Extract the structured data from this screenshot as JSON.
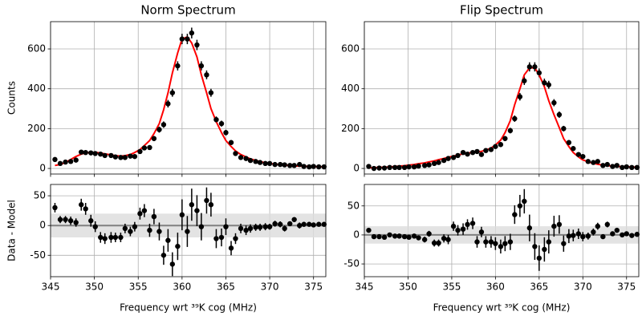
{
  "chart_data": [
    {
      "type": "scatter",
      "title": "Norm Spectrum",
      "ylabel": "Counts",
      "residual_ylabel": "Data - Model",
      "xlabel": "Frequency wrt ³⁹K cog (MHz)",
      "grid": true,
      "point_color": "#000000",
      "model_color": "#ff0000",
      "zero_line_color": "#808080",
      "band_color": "#dcdcdc",
      "xlim": [
        345,
        376.4
      ],
      "xticks": [
        345,
        350,
        355,
        360,
        365,
        370,
        375
      ],
      "ylim": [
        -28,
        737
      ],
      "yticks": [
        0,
        200,
        400,
        600
      ],
      "residual_ylim": [
        -86,
        69
      ],
      "residual_yticks": [
        -50,
        0,
        50
      ],
      "band": [
        -20,
        20
      ],
      "x": [
        345.5,
        346.1,
        346.7,
        347.3,
        347.9,
        348.5,
        349.0,
        349.6,
        350.1,
        350.7,
        351.2,
        351.9,
        352.4,
        353.0,
        353.5,
        354.1,
        354.6,
        355.2,
        355.7,
        356.3,
        356.8,
        357.4,
        357.9,
        358.4,
        358.9,
        359.5,
        360.0,
        360.6,
        361.1,
        361.7,
        362.2,
        362.8,
        363.3,
        363.9,
        364.5,
        365.0,
        365.6,
        366.1,
        366.7,
        367.3,
        367.8,
        368.4,
        368.9,
        369.5,
        370.0,
        370.6,
        371.2,
        371.7,
        372.3,
        372.8,
        373.4,
        373.9,
        374.5,
        375.0,
        375.6,
        376.2
      ],
      "values": [
        45,
        25,
        32,
        35,
        42,
        82,
        80,
        78,
        75,
        72,
        65,
        65,
        58,
        55,
        55,
        62,
        60,
        85,
        103,
        105,
        150,
        195,
        220,
        325,
        380,
        515,
        650,
        650,
        680,
        620,
        515,
        470,
        380,
        245,
        225,
        180,
        130,
        75,
        55,
        50,
        40,
        35,
        30,
        25,
        25,
        20,
        20,
        18,
        15,
        15,
        20,
        10,
        8,
        10,
        8,
        8
      ],
      "errors": [
        8,
        6,
        6,
        7,
        7,
        10,
        10,
        10,
        9,
        9,
        9,
        9,
        8,
        8,
        8,
        8,
        8,
        10,
        11,
        11,
        13,
        15,
        16,
        19,
        20,
        23,
        26,
        26,
        27,
        26,
        23,
        22,
        20,
        16,
        15,
        14,
        12,
        9,
        8,
        8,
        7,
        6,
        6,
        6,
        5,
        5,
        5,
        5,
        4,
        4,
        5,
        4,
        3,
        4,
        3,
        3
      ],
      "model": [
        15,
        20,
        30,
        45,
        60,
        72,
        78,
        80,
        80,
        78,
        73,
        68,
        64,
        62,
        64,
        70,
        80,
        95,
        115,
        140,
        175,
        225,
        295,
        380,
        480,
        580,
        650,
        660,
        630,
        560,
        470,
        380,
        300,
        235,
        180,
        140,
        110,
        88,
        70,
        58,
        48,
        40,
        34,
        29,
        25,
        22,
        19,
        17,
        15,
        13,
        12,
        11,
        10,
        9,
        8,
        8
      ],
      "residuals": [
        30,
        10,
        10,
        8,
        5,
        35,
        28,
        8,
        -2,
        -20,
        -22,
        -20,
        -20,
        -20,
        -5,
        -10,
        -2,
        20,
        25,
        -8,
        15,
        -10,
        -50,
        -25,
        -65,
        -35,
        18,
        -10,
        35,
        25,
        -2,
        42,
        35,
        -22,
        -20,
        -2,
        -38,
        -22,
        -5,
        -8,
        -5,
        -3,
        -3,
        -2,
        -2,
        3,
        2,
        -5,
        3,
        10,
        0,
        2,
        2,
        1,
        2,
        2
      ]
    },
    {
      "type": "scatter",
      "title": "Flip Spectrum",
      "xlabel": "Frequency wrt ³⁹K cog (MHz)",
      "grid": true,
      "point_color": "#000000",
      "model_color": "#ff0000",
      "zero_line_color": "#808080",
      "band_color": "#dcdcdc",
      "xlim": [
        345,
        376.4
      ],
      "xticks": [
        345,
        350,
        355,
        360,
        365,
        370,
        375
      ],
      "ylim": [
        -28,
        737
      ],
      "yticks": [
        0,
        200,
        400,
        600
      ],
      "residual_ylim": [
        -72,
        87
      ],
      "residual_yticks": [
        -50,
        0,
        50
      ],
      "band": [
        -15,
        15
      ],
      "x": [
        345.5,
        346.1,
        346.7,
        347.3,
        347.9,
        348.5,
        349.0,
        349.6,
        350.1,
        350.7,
        351.2,
        351.9,
        352.4,
        353.0,
        353.5,
        354.1,
        354.6,
        355.2,
        355.7,
        356.3,
        356.8,
        357.4,
        357.9,
        358.4,
        358.9,
        359.5,
        360.0,
        360.6,
        361.1,
        361.7,
        362.2,
        362.8,
        363.3,
        363.9,
        364.5,
        365.0,
        365.6,
        366.1,
        366.7,
        367.3,
        367.8,
        368.4,
        368.9,
        369.5,
        370.0,
        370.6,
        371.2,
        371.7,
        372.3,
        372.8,
        373.4,
        373.9,
        374.5,
        375.0,
        375.6,
        376.2
      ],
      "values": [
        10,
        0,
        2,
        2,
        5,
        5,
        5,
        5,
        8,
        8,
        12,
        15,
        18,
        25,
        30,
        40,
        50,
        55,
        65,
        80,
        72,
        80,
        85,
        70,
        90,
        95,
        110,
        120,
        150,
        190,
        250,
        360,
        440,
        510,
        510,
        480,
        430,
        420,
        330,
        270,
        200,
        130,
        100,
        70,
        60,
        35,
        30,
        35,
        15,
        20,
        10,
        15,
        5,
        8,
        5,
        5
      ],
      "errors": [
        4,
        2,
        2,
        2,
        3,
        3,
        3,
        3,
        4,
        4,
        4,
        5,
        5,
        6,
        6,
        7,
        8,
        8,
        9,
        10,
        9,
        10,
        10,
        9,
        10,
        10,
        11,
        12,
        13,
        14,
        16,
        19,
        21,
        23,
        23,
        22,
        21,
        20,
        18,
        16,
        14,
        12,
        10,
        9,
        8,
        6,
        6,
        6,
        4,
        5,
        4,
        4,
        3,
        3,
        3,
        3
      ],
      "model": [
        3,
        4,
        5,
        6,
        8,
        10,
        12,
        14,
        17,
        20,
        24,
        28,
        33,
        38,
        44,
        50,
        56,
        62,
        68,
        73,
        77,
        80,
        83,
        86,
        92,
        102,
        118,
        142,
        180,
        240,
        320,
        400,
        470,
        505,
        505,
        470,
        410,
        340,
        270,
        205,
        150,
        110,
        80,
        58,
        43,
        33,
        26,
        21,
        17,
        14,
        12,
        10,
        9,
        8,
        7,
        6
      ],
      "residuals": [
        8,
        -3,
        -3,
        -4,
        0,
        -2,
        -2,
        -3,
        -4,
        -2,
        -5,
        -8,
        2,
        -14,
        -14,
        -6,
        -8,
        15,
        8,
        10,
        18,
        20,
        -12,
        5,
        -12,
        -12,
        -15,
        -20,
        -15,
        -12,
        35,
        50,
        58,
        12,
        -20,
        -40,
        -25,
        -12,
        15,
        18,
        -15,
        -2,
        -1,
        2,
        -3,
        -2,
        5,
        15,
        -3,
        18,
        2,
        8,
        0,
        2,
        -1,
        1
      ]
    }
  ]
}
